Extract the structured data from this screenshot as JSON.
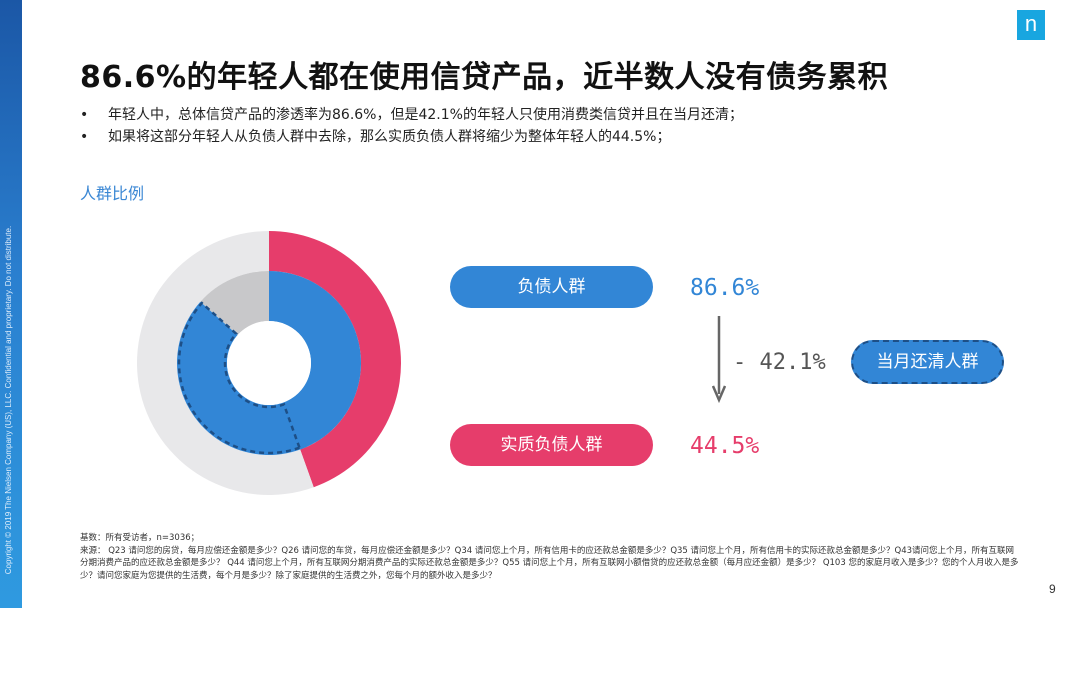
{
  "sidebar": {
    "copyright": "Copyright © 2019 The Nielsen Company (US), LLC. Confidential and proprietary. Do not distribute."
  },
  "logo": {
    "letter": "n",
    "color": "#18a6e0"
  },
  "title": "86.6%的年轻人都在使用信贷产品，近半数人没有债务累积",
  "bullets": [
    "年轻人中，总体信贷产品的渗透率为86.6%，但是42.1%的年轻人只使用消费类信贷并且在当月还清；",
    "如果将这部分年轻人从负债人群中去除，那么实质负债人群将缩少为整体年轻人的44.5%；"
  ],
  "section_label": "人群比例",
  "chart_data": {
    "type": "pie",
    "subtype": "nested-donut",
    "outer_ring": {
      "slices": [
        {
          "label": "实质负债人群",
          "value": 44.5,
          "color": "#e63d6b"
        },
        {
          "label": "",
          "value": 55.5,
          "color": "#e8e8ea"
        }
      ]
    },
    "inner_ring": {
      "slices": [
        {
          "label": "负债人群",
          "value": 86.6,
          "color": "#3286d6"
        },
        {
          "label": "",
          "value": 13.4,
          "color": "#c8c8ca"
        }
      ]
    },
    "highlight": {
      "label": "当月还清人群",
      "value": 42.1,
      "style": "dashed outline on inner ring"
    }
  },
  "flow": {
    "debt_label": "负债人群",
    "debt_value": "86.6%",
    "minus_value": "- 42.1%",
    "cleared_label": "当月还清人群",
    "real_label": "实质负债人群",
    "real_value": "44.5%",
    "colors": {
      "blue": "#3286d6",
      "pink": "#e63d6b"
    }
  },
  "footnote": {
    "base": "基数：所有受访者，n=3036；",
    "source": "来源： Q23 请问您的房贷，每月应偿还金额是多少？Q26 请问您的车贷，每月应偿还金额是多少？Q34 请问您上个月，所有信用卡的应还款总金额是多少？Q35 请问您上个月，所有信用卡的实际还款总金额是多少？Q43请问您上个月，所有互联网分期消费产品的应还款总金额是多少？ Q44 请问您上个月，所有互联网分期消费产品的实际还款总金额是多少？Q55 请问您上个月，所有互联网小额借贷的应还款总金额（每月应还金额）是多少？ Q103 您的家庭月收入是多少？您的个人月收入是多少？请问您家庭为您提供的生活费，每个月是多少？除了家庭提供的生活费之外，您每个月的额外收入是多少？"
  },
  "page_number": "9"
}
